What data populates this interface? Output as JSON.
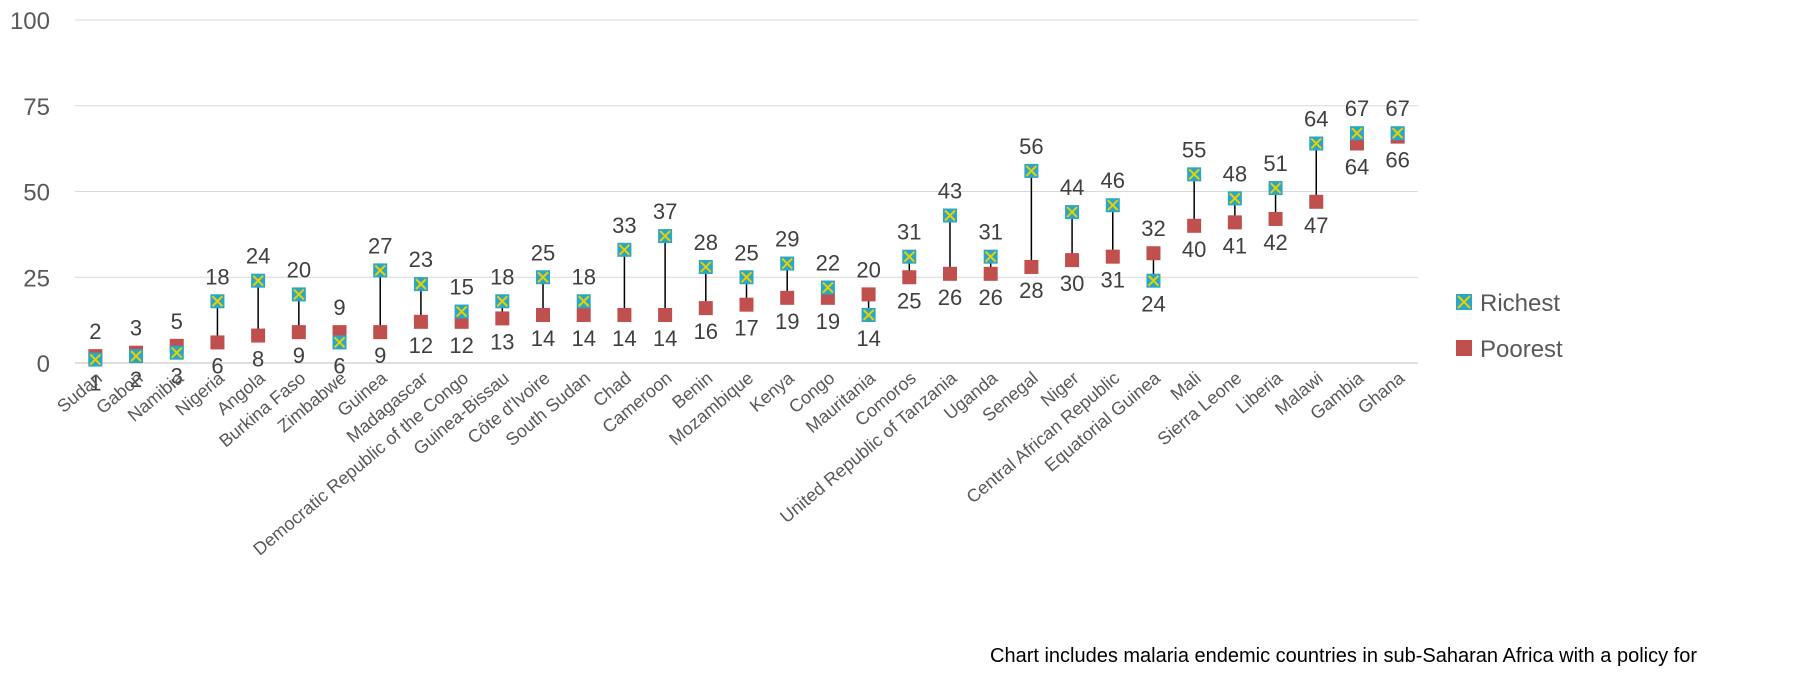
{
  "chart_data": {
    "type": "scatter",
    "subtype": "dumbbell",
    "categories": [
      "Sudan",
      "Gabon",
      "Namibia",
      "Nigeria",
      "Angola",
      "Burkina Faso",
      "Zimbabwe",
      "Guinea",
      "Madagascar",
      "Democratic Republic of the Congo",
      "Guinea-Bissau",
      "Côte d'Ivoire",
      "South Sudan",
      "Chad",
      "Cameroon",
      "Benin",
      "Mozambique",
      "Kenya",
      "Congo",
      "Mauritania",
      "Comoros",
      "United Republic of Tanzania",
      "Uganda",
      "Senegal",
      "Niger",
      "Central African Republic",
      "Equatorial Guinea",
      "Mali",
      "Sierra Leone",
      "Liberia",
      "Malawi",
      "Gambia",
      "Ghana"
    ],
    "series": [
      {
        "name": "Richest",
        "color": "#2aa6c8",
        "marker_accent": "#e8d100",
        "values": [
          1,
          2,
          3,
          18,
          24,
          20,
          6,
          27,
          23,
          15,
          18,
          25,
          18,
          33,
          37,
          28,
          25,
          29,
          22,
          14,
          31,
          43,
          31,
          56,
          44,
          46,
          24,
          55,
          48,
          51,
          64,
          67,
          67
        ]
      },
      {
        "name": "Poorest",
        "color": "#c0504d",
        "values": [
          2,
          3,
          5,
          6,
          8,
          9,
          9,
          9,
          12,
          12,
          13,
          14,
          14,
          14,
          14,
          16,
          17,
          19,
          19,
          20,
          25,
          26,
          26,
          28,
          30,
          31,
          32,
          40,
          41,
          42,
          47,
          64,
          66
        ]
      }
    ],
    "ylim": [
      0,
      100
    ],
    "yticks": [
      0,
      25,
      50,
      75,
      100
    ],
    "legend_position": "right",
    "grid": "horizontal"
  },
  "note": "Chart includes malaria endemic countries in sub-Saharan Africa with a policy for"
}
